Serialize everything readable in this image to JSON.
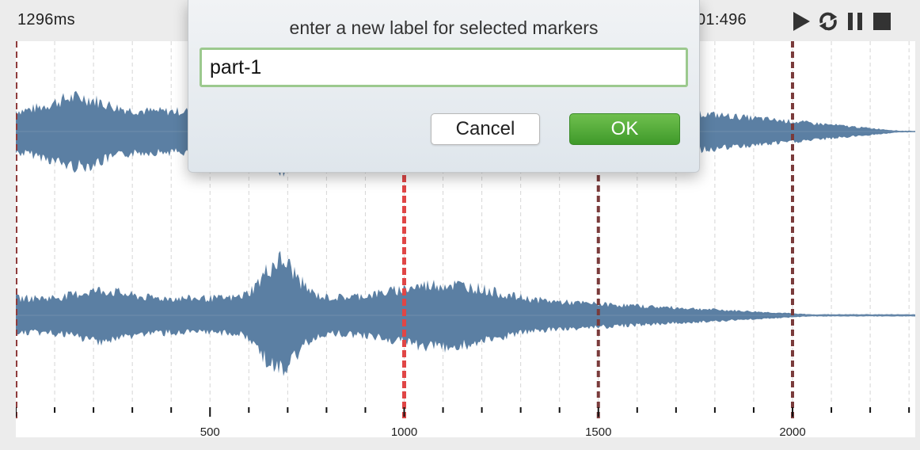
{
  "topbar": {
    "time_left": "1296ms",
    "time_right": "01:496",
    "controls": [
      {
        "icon": "play-icon"
      },
      {
        "icon": "loop-icon"
      },
      {
        "icon": "pause-icon"
      },
      {
        "icon": "stop-icon"
      }
    ]
  },
  "timeline": {
    "range_ms": [
      0,
      2320
    ],
    "tick_labels": [
      "500",
      "1000",
      "1500",
      "2000"
    ],
    "major_ticks_ms": [
      500,
      1000,
      1500,
      2000
    ],
    "minor_tick_step_ms": 100,
    "markers": [
      {
        "time_ms": 0,
        "color": "#8e3b3b",
        "selected": false
      },
      {
        "time_ms": 1000,
        "color": "#e04646",
        "selected": true
      },
      {
        "time_ms": 1500,
        "color": "#7a3b3b",
        "selected": false
      },
      {
        "time_ms": 2000,
        "color": "#7a3b3b",
        "selected": false
      }
    ],
    "waveform_color": "#5b7fa3"
  },
  "dialog": {
    "title": "enter a new label for selected markers",
    "input_value": "part-1",
    "cancel_label": "Cancel",
    "ok_label": "OK"
  }
}
